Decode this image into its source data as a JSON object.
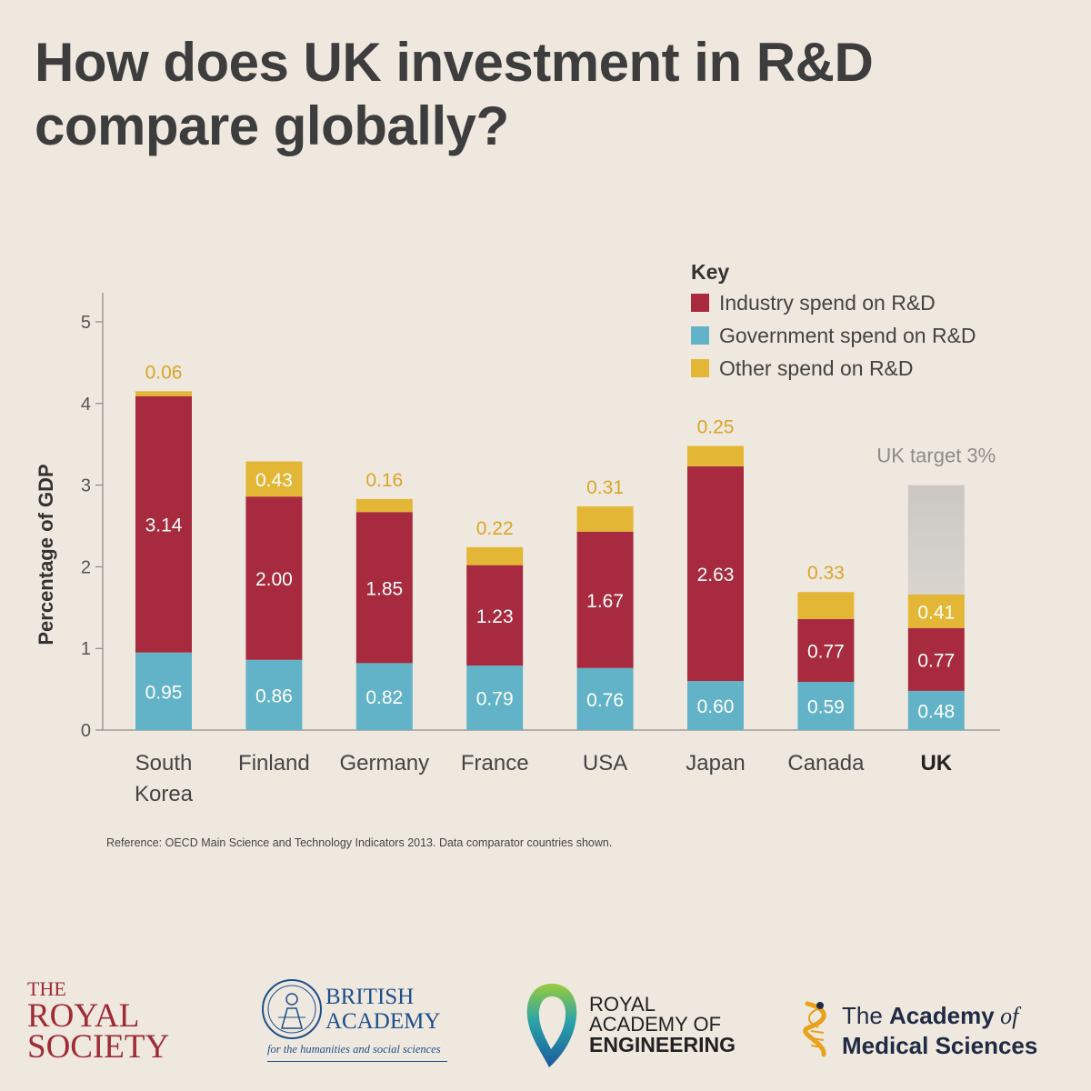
{
  "title": "How does UK investment in R&D compare globally?",
  "chart_data": {
    "type": "bar",
    "stacked": true,
    "categories": [
      "South Korea",
      "Finland",
      "Germany",
      "France",
      "USA",
      "Japan",
      "Canada",
      "UK"
    ],
    "category_lines": [
      [
        "South",
        "Korea"
      ],
      [
        "Finland"
      ],
      [
        "Germany"
      ],
      [
        "France"
      ],
      [
        "USA"
      ],
      [
        "Japan"
      ],
      [
        "Canada"
      ],
      [
        "UK"
      ]
    ],
    "series": [
      {
        "name": "Government spend on R&D",
        "color": "#62b3c8",
        "labels": [
          "0.95",
          "0.86",
          "0.82",
          "0.79",
          "0.76",
          "0.60",
          "0.59",
          "0.48"
        ],
        "values": [
          0.95,
          0.86,
          0.82,
          0.79,
          0.76,
          0.6,
          0.59,
          0.48
        ]
      },
      {
        "name": "Industry spend on R&D",
        "color": "#a72a3e",
        "labels": [
          "3.14",
          "2.00",
          "1.85",
          "1.23",
          "1.67",
          "2.63",
          "0.77",
          "0.77"
        ],
        "values": [
          3.14,
          2.0,
          1.85,
          1.23,
          1.67,
          2.63,
          0.77,
          0.77
        ]
      },
      {
        "name": "Other spend on R&D",
        "color": "#e3b735",
        "labels": [
          "0.06",
          "0.43",
          "0.16",
          "0.22",
          "0.31",
          "0.25",
          "0.33",
          "0.41"
        ],
        "values": [
          0.06,
          0.43,
          0.16,
          0.22,
          0.31,
          0.25,
          0.33,
          0.41
        ]
      }
    ],
    "legend_title": "Key",
    "legend_order": [
      "Industry spend on R&D",
      "Government spend on R&D",
      "Other spend on R&D"
    ],
    "legend_position": "top-right",
    "ylabel": "Percentage of GDP",
    "xlabel": "",
    "ylim": [
      0,
      5.3
    ],
    "yticks": [
      0,
      1,
      2,
      3,
      4,
      5
    ],
    "grid": false,
    "highlight_category": "UK",
    "target": {
      "category": "UK",
      "value": 3,
      "label": "UK target 3%"
    }
  },
  "reference": "Reference: OECD Main Science and Technology Indicators 2013. Data comparator countries shown.",
  "logos": {
    "royal_society": [
      "THE",
      "ROYAL",
      "SOCIETY"
    ],
    "british_academy": {
      "name": [
        "BRITISH",
        "ACADEMY"
      ],
      "tagline": "for the humanities and social sciences"
    },
    "royal_academy_engineering": [
      "ROYAL",
      "ACADEMY OF",
      "ENGINEERING"
    ],
    "academy_medical_sciences": {
      "line1_prefix": "The ",
      "line1_bold": "Academy",
      "line1_suffix": " of",
      "line2": "Medical Sciences"
    }
  },
  "colors": {
    "background": "#efe8df",
    "industry": "#a72a3e",
    "government": "#62b3c8",
    "other": "#e3b735",
    "target": "#c9c6c2"
  }
}
